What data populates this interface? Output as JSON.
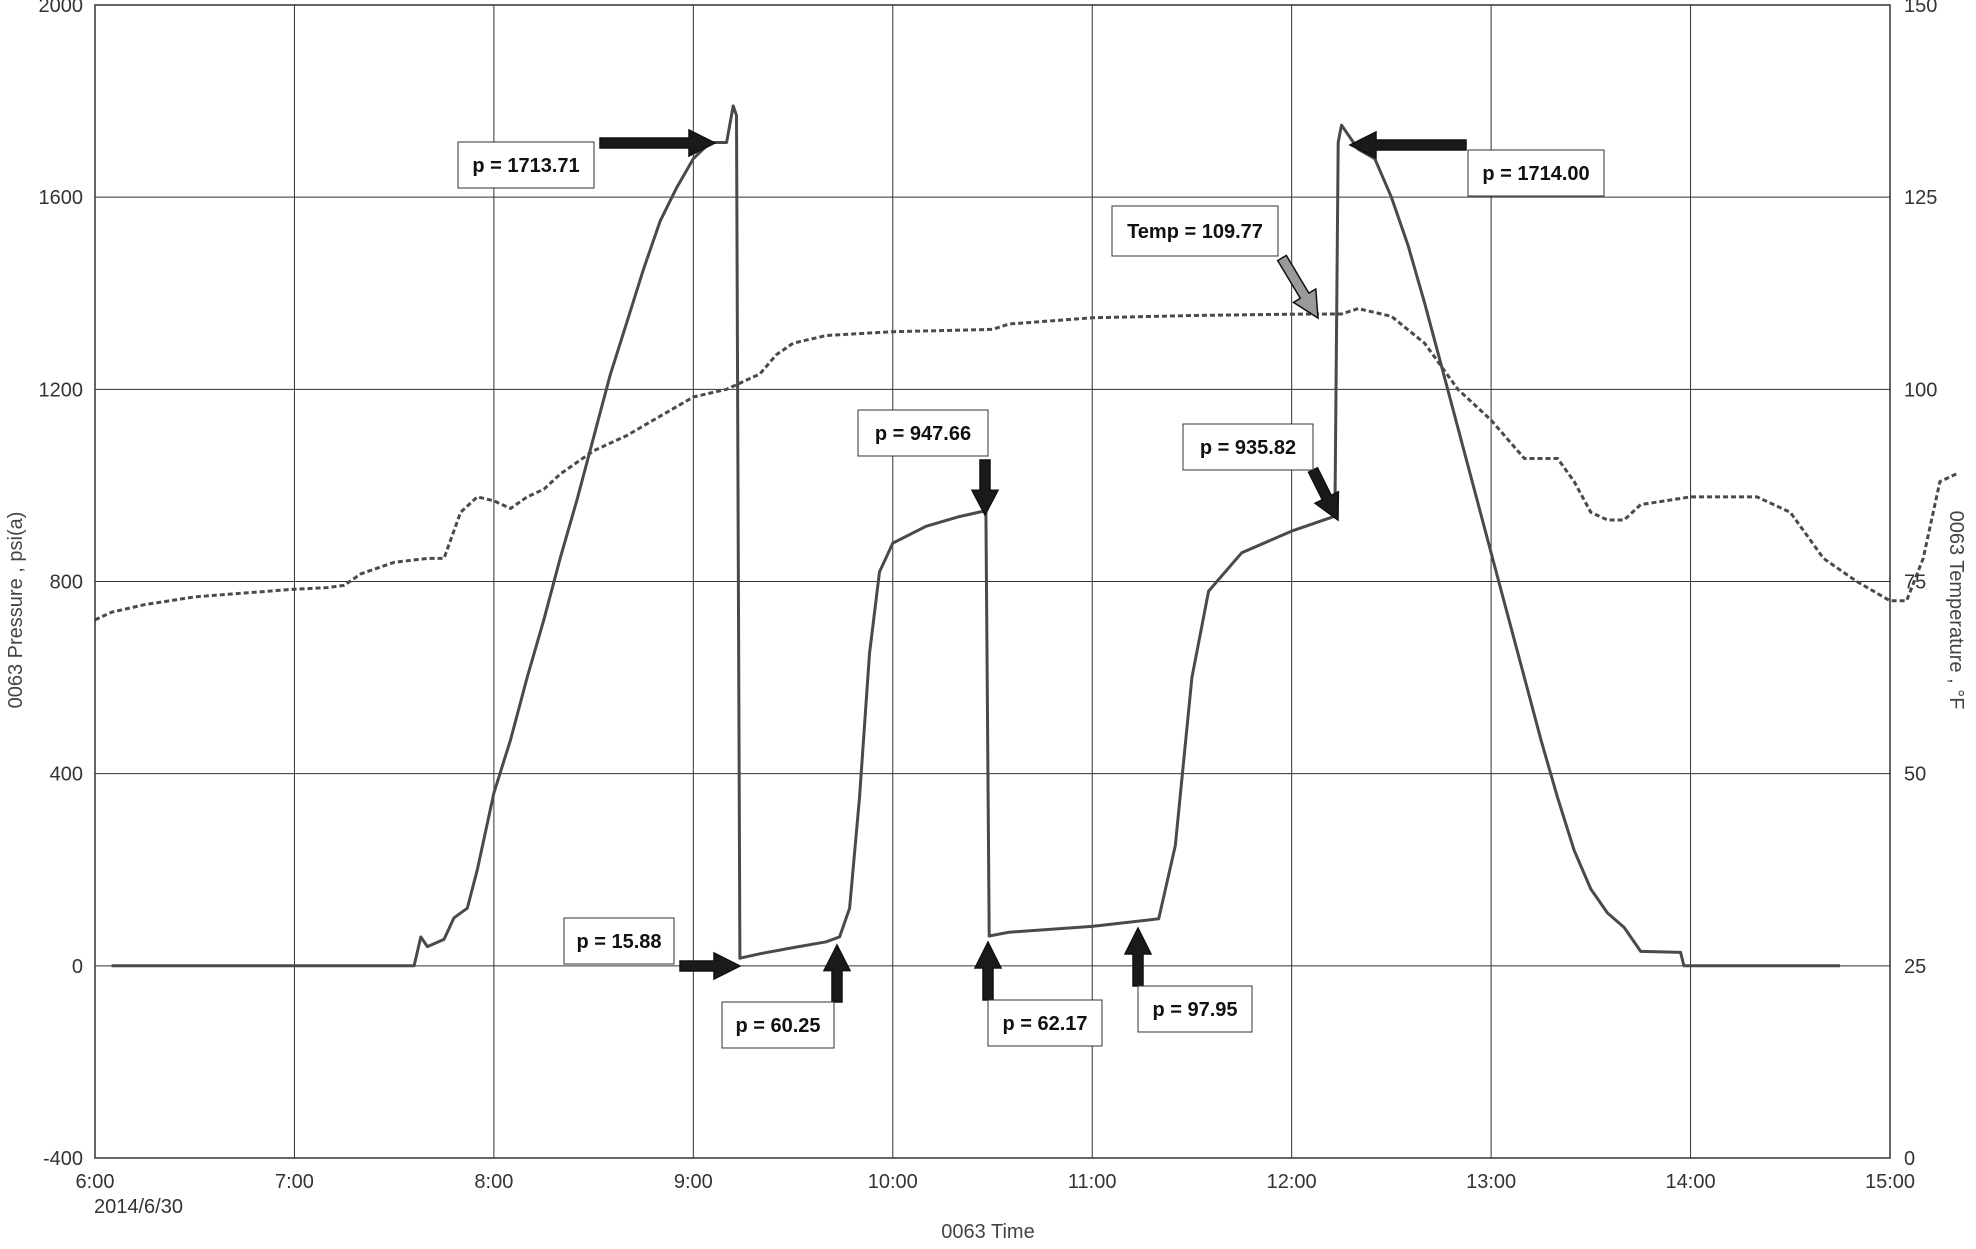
{
  "chart_data": {
    "type": "line",
    "title": "",
    "xlabel": "0063 Time",
    "ylabel_left": "0063 Pressure , psi(a)",
    "ylabel_right": "0063 Temperature , °F",
    "x_start_date": "2014/6/30",
    "x_tick_labels": [
      "6:00",
      "7:00",
      "8:00",
      "9:00",
      "10:00",
      "11:00",
      "12:00",
      "13:00",
      "14:00",
      "15:00"
    ],
    "x_range": [
      "6:00",
      "15:00"
    ],
    "y_left_ticks": [
      "-400",
      "0",
      "400",
      "800",
      "1200",
      "1600",
      "2000"
    ],
    "y_left_range": [
      -400,
      2000
    ],
    "y_right_ticks": [
      "0",
      "25",
      "50",
      "75",
      "100",
      "125",
      "150"
    ],
    "y_right_range": [
      0,
      150
    ],
    "grid": true,
    "series": [
      {
        "axis": "left",
        "style": "solid",
        "color": "#4a4a4a",
        "points": [
          [
            "6:05",
            0
          ],
          [
            "7:30",
            0
          ],
          [
            "7:36",
            0
          ],
          [
            "7:38",
            60
          ],
          [
            "7:40",
            40
          ],
          [
            "7:45",
            55
          ],
          [
            "7:48",
            100
          ],
          [
            "7:52",
            120
          ],
          [
            "7:55",
            200
          ],
          [
            "8:00",
            360
          ],
          [
            "8:05",
            470
          ],
          [
            "8:10",
            600
          ],
          [
            "8:15",
            720
          ],
          [
            "8:20",
            850
          ],
          [
            "8:25",
            970
          ],
          [
            "8:30",
            1100
          ],
          [
            "8:35",
            1230
          ],
          [
            "8:40",
            1340
          ],
          [
            "8:45",
            1450
          ],
          [
            "8:50",
            1550
          ],
          [
            "8:55",
            1620
          ],
          [
            "9:00",
            1680
          ],
          [
            "9:05",
            1713.71
          ],
          [
            "9:10",
            1713.71
          ],
          [
            "9:12",
            1790
          ],
          [
            "9:13",
            1770
          ],
          [
            "9:14",
            15.88
          ],
          [
            "9:20",
            25
          ],
          [
            "9:30",
            38
          ],
          [
            "9:40",
            50
          ],
          [
            "9:44",
            60.25
          ],
          [
            "9:47",
            120
          ],
          [
            "9:50",
            350
          ],
          [
            "9:53",
            650
          ],
          [
            "9:56",
            820
          ],
          [
            "10:00",
            880
          ],
          [
            "10:10",
            915
          ],
          [
            "10:20",
            935
          ],
          [
            "10:28",
            947.66
          ],
          [
            "10:29",
            62.17
          ],
          [
            "10:35",
            70
          ],
          [
            "11:00",
            82
          ],
          [
            "11:20",
            97.95
          ],
          [
            "11:25",
            250
          ],
          [
            "11:30",
            600
          ],
          [
            "11:35",
            780
          ],
          [
            "11:45",
            860
          ],
          [
            "12:00",
            905
          ],
          [
            "12:13",
            935.82
          ],
          [
            "12:14",
            1714.0
          ],
          [
            "12:15",
            1750
          ],
          [
            "12:20",
            1700
          ],
          [
            "12:25",
            1680
          ],
          [
            "12:30",
            1600
          ],
          [
            "12:35",
            1500
          ],
          [
            "12:40",
            1380
          ],
          [
            "12:45",
            1250
          ],
          [
            "12:50",
            1120
          ],
          [
            "12:55",
            990
          ],
          [
            "13:00",
            860
          ],
          [
            "13:05",
            730
          ],
          [
            "13:10",
            600
          ],
          [
            "13:15",
            470
          ],
          [
            "13:20",
            350
          ],
          [
            "13:25",
            240
          ],
          [
            "13:30",
            160
          ],
          [
            "13:35",
            110
          ],
          [
            "13:40",
            80
          ],
          [
            "13:45",
            30
          ],
          [
            "13:57",
            28
          ],
          [
            "13:58",
            0
          ],
          [
            "14:45",
            0
          ]
        ]
      },
      {
        "axis": "right",
        "style": "dashed",
        "color": "#4a4a4a",
        "points": [
          [
            "6:00",
            70
          ],
          [
            "6:05",
            71
          ],
          [
            "6:15",
            72
          ],
          [
            "6:30",
            73
          ],
          [
            "6:45",
            73.5
          ],
          [
            "7:00",
            74
          ],
          [
            "7:10",
            74.2
          ],
          [
            "7:15",
            74.5
          ],
          [
            "7:20",
            76
          ],
          [
            "7:30",
            77.5
          ],
          [
            "7:40",
            78
          ],
          [
            "7:45",
            78
          ],
          [
            "7:50",
            84
          ],
          [
            "7:55",
            86
          ],
          [
            "8:00",
            85.5
          ],
          [
            "8:05",
            84.5
          ],
          [
            "8:10",
            86
          ],
          [
            "8:15",
            87
          ],
          [
            "8:20",
            89
          ],
          [
            "8:30",
            92
          ],
          [
            "8:40",
            94
          ],
          [
            "8:50",
            96.5
          ],
          [
            "9:00",
            99
          ],
          [
            "9:10",
            100
          ],
          [
            "9:15",
            101
          ],
          [
            "9:20",
            102
          ],
          [
            "9:25",
            104.5
          ],
          [
            "9:30",
            106
          ],
          [
            "9:40",
            107
          ],
          [
            "10:00",
            107.5
          ],
          [
            "10:30",
            107.8
          ],
          [
            "10:35",
            108.5
          ],
          [
            "11:00",
            109.3
          ],
          [
            "11:30",
            109.6
          ],
          [
            "12:00",
            109.77
          ],
          [
            "12:15",
            109.8
          ],
          [
            "12:20",
            110.5
          ],
          [
            "12:30",
            109.5
          ],
          [
            "12:40",
            106
          ],
          [
            "12:50",
            100
          ],
          [
            "13:00",
            96
          ],
          [
            "13:05",
            93.5
          ],
          [
            "13:10",
            91
          ],
          [
            "13:15",
            91
          ],
          [
            "13:20",
            91
          ],
          [
            "13:25",
            88
          ],
          [
            "13:30",
            84
          ],
          [
            "13:35",
            83
          ],
          [
            "13:40",
            83
          ],
          [
            "13:45",
            85
          ],
          [
            "14:00",
            86
          ],
          [
            "14:10",
            86
          ],
          [
            "14:20",
            86
          ],
          [
            "14:30",
            84
          ],
          [
            "14:40",
            78
          ],
          [
            "14:50",
            75
          ],
          [
            "15:00",
            72.5
          ],
          [
            "15:05",
            72.5
          ],
          [
            "15:10",
            78
          ],
          [
            "15:15",
            88
          ],
          [
            "15:20",
            89
          ]
        ]
      }
    ],
    "annotations": [
      {
        "label": "p = 1713.71",
        "at": [
          "9:05",
          1713.71
        ]
      },
      {
        "label": "p = 1714.00",
        "at": [
          "12:15",
          1714.0
        ]
      },
      {
        "label": "Temp = 109.77",
        "at": [
          "12:05",
          1350
        ]
      },
      {
        "label": "p = 947.66",
        "at": [
          "10:28",
          947.66
        ]
      },
      {
        "label": "p = 935.82",
        "at": [
          "12:13",
          935.82
        ]
      },
      {
        "label": "p = 15.88",
        "at": [
          "9:14",
          15.88
        ]
      },
      {
        "label": "p = 60.25",
        "at": [
          "9:44",
          60.25
        ]
      },
      {
        "label": "p = 62.17",
        "at": [
          "10:29",
          62.17
        ]
      },
      {
        "label": "p = 97.95",
        "at": [
          "11:20",
          97.95
        ]
      }
    ]
  }
}
